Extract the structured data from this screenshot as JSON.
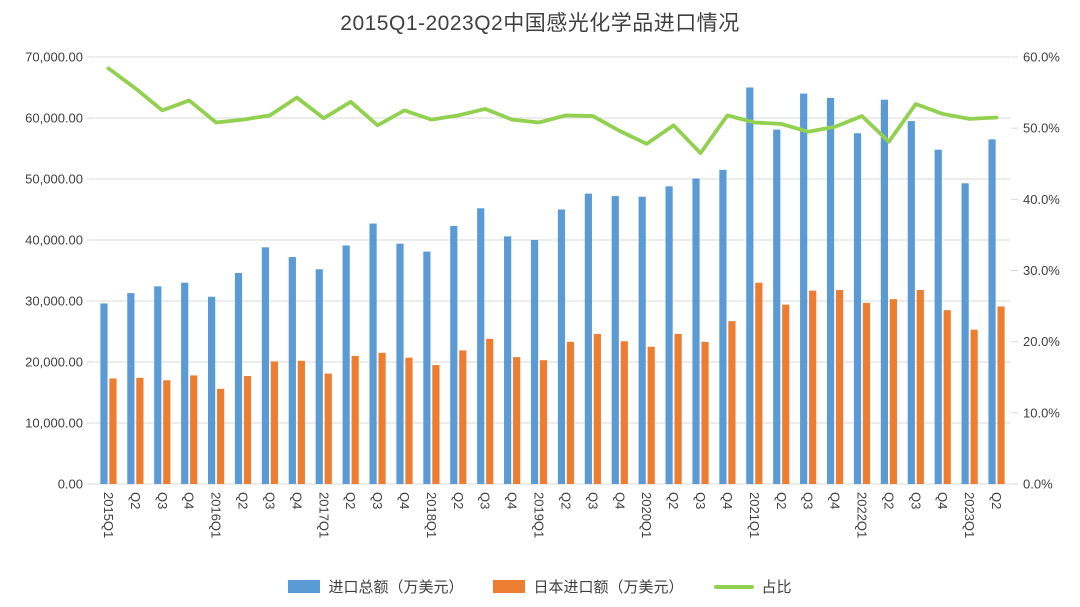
{
  "title": "2015Q1-2023Q2中国感光化学品进口情况",
  "colors": {
    "total_bar": "#5B9BD5",
    "japan_bar": "#ED7D31",
    "ratio_line": "#92D050",
    "grid": "#D9D9D9",
    "axis_text": "#404040"
  },
  "legend": {
    "items": [
      {
        "label": "进口总额（万美元）",
        "swatch": "bar",
        "color_key": "total_bar"
      },
      {
        "label": "日本进口额（万美元）",
        "swatch": "bar",
        "color_key": "japan_bar"
      },
      {
        "label": "占比",
        "swatch": "line",
        "color_key": "ratio_line"
      }
    ]
  },
  "chart_data": {
    "type": "combo-bar-line",
    "title": "2015Q1-2023Q2中国感光化学品进口情况",
    "categories": [
      "2015Q1",
      "2015Q2",
      "2015Q3",
      "2015Q4",
      "2016Q1",
      "2016Q2",
      "2016Q3",
      "2016Q4",
      "2017Q1",
      "2017Q2",
      "2017Q3",
      "2017Q4",
      "2018Q1",
      "2018Q2",
      "2018Q3",
      "2018Q4",
      "2019Q1",
      "2019Q2",
      "2019Q3",
      "2019Q4",
      "2020Q1",
      "2020Q2",
      "2020Q3",
      "2020Q4",
      "2021Q1",
      "2021Q2",
      "2021Q3",
      "2021Q4",
      "2022Q1",
      "2022Q2",
      "2022Q3",
      "2022Q4",
      "2023Q1",
      "2023Q2"
    ],
    "x_tick_labels": [
      "2015Q1",
      "Q2",
      "Q3",
      "Q4",
      "2016Q1",
      "Q2",
      "Q3",
      "Q4",
      "2017Q1",
      "Q2",
      "Q3",
      "Q4",
      "2018Q1",
      "Q2",
      "Q3",
      "Q4",
      "2019Q1",
      "Q2",
      "Q3",
      "Q4",
      "2020Q1",
      "Q2",
      "Q3",
      "Q4",
      "2021Q1",
      "Q2",
      "Q3",
      "Q4",
      "2022Q1",
      "Q2",
      "Q3",
      "Q4",
      "2023Q1",
      "Q2"
    ],
    "series": [
      {
        "name": "进口总额（万美元）",
        "type": "bar",
        "axis": "left",
        "color": "#5B9BD5",
        "values": [
          29600,
          31300,
          32400,
          33000,
          30700,
          34600,
          38800,
          37200,
          35200,
          39100,
          42700,
          39400,
          38100,
          42300,
          45200,
          40600,
          40000,
          45000,
          47600,
          47200,
          47100,
          48800,
          50100,
          51500,
          65000,
          58100,
          64000,
          63300,
          57500,
          63000,
          59500,
          54800,
          49300,
          56500
        ]
      },
      {
        "name": "日本进口额（万美元）",
        "type": "bar",
        "axis": "left",
        "color": "#ED7D31",
        "values": [
          17300,
          17400,
          17000,
          17800,
          15600,
          17700,
          20100,
          20200,
          18100,
          21000,
          21500,
          20700,
          19500,
          21900,
          23800,
          20800,
          20300,
          23300,
          24600,
          23400,
          22500,
          24600,
          23300,
          26700,
          33000,
          29400,
          31700,
          31800,
          29700,
          30300,
          31800,
          28500,
          25300,
          29100
        ]
      },
      {
        "name": "占比",
        "type": "line",
        "axis": "right",
        "unit": "%",
        "color": "#92D050",
        "values": [
          58.4,
          55.6,
          52.5,
          53.9,
          50.8,
          51.2,
          51.8,
          54.3,
          51.4,
          53.7,
          50.4,
          52.5,
          51.2,
          51.8,
          52.7,
          51.2,
          50.8,
          51.8,
          51.7,
          49.6,
          47.8,
          50.4,
          46.5,
          51.8,
          50.8,
          50.6,
          49.5,
          50.2,
          51.7,
          48.1,
          53.4,
          52.0,
          51.3,
          51.5
        ]
      }
    ],
    "axes": {
      "left": {
        "min": 0,
        "max": 70000,
        "step": 10000,
        "tick_labels": [
          "0.00",
          "10,000.00",
          "20,000.00",
          "30,000.00",
          "40,000.00",
          "50,000.00",
          "60,000.00",
          "70,000.00"
        ]
      },
      "right": {
        "min": 0,
        "max": 60,
        "step": 10,
        "tick_labels": [
          "0.0%",
          "10.0%",
          "20.0%",
          "30.0%",
          "40.0%",
          "50.0%",
          "60.0%"
        ]
      }
    },
    "grid": true,
    "legend_position": "bottom"
  }
}
